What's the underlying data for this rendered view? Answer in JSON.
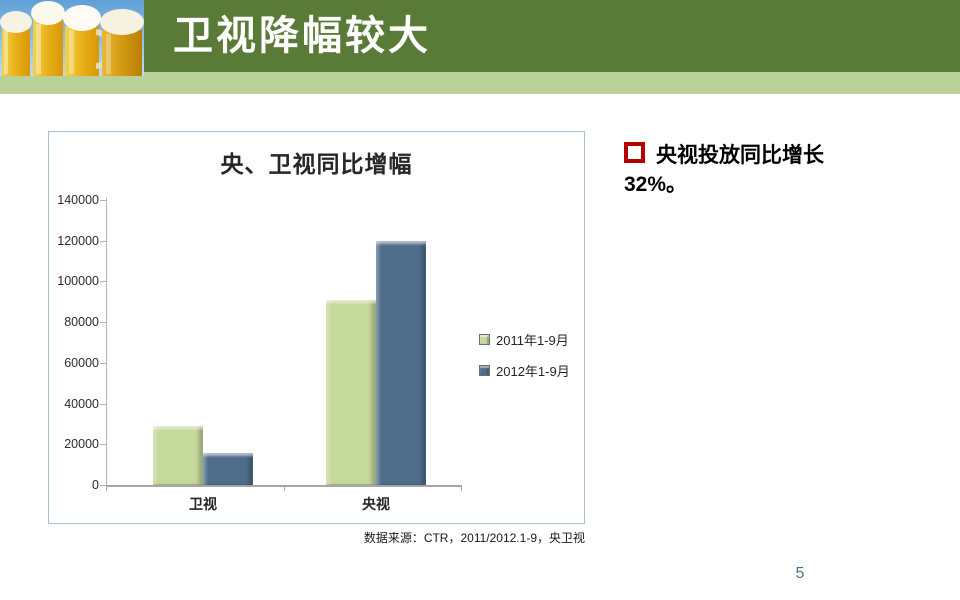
{
  "slide": {
    "header": {
      "title": "卫视降幅较大"
    },
    "note": {
      "line1": "央视投放同比增长",
      "line2": "32%。"
    },
    "source": "数据来源：CTR，2011/2012.1-9，央卫视",
    "page_number": "5"
  },
  "chart_data": {
    "type": "bar",
    "title": "央、卫视同比增幅",
    "categories": [
      "卫视",
      "央视"
    ],
    "series": [
      {
        "name": "2011年1-9月",
        "color": "#c6d99c",
        "values": [
          29000,
          91000
        ]
      },
      {
        "name": "2012年1-9月",
        "color": "#4e6d8b",
        "values": [
          15500,
          120000
        ]
      }
    ],
    "ylim": [
      0,
      140000
    ],
    "ytick_step": 20000,
    "grid": false,
    "legend_position": "right-middle"
  },
  "colors": {
    "header_band": "#5a7a38",
    "accent_strip": "#b9d097",
    "chart_border": "#a9c0d4",
    "bullet_red": "#b30000",
    "page_number": "#44798e",
    "axis_gray": "#b3b3b3"
  }
}
